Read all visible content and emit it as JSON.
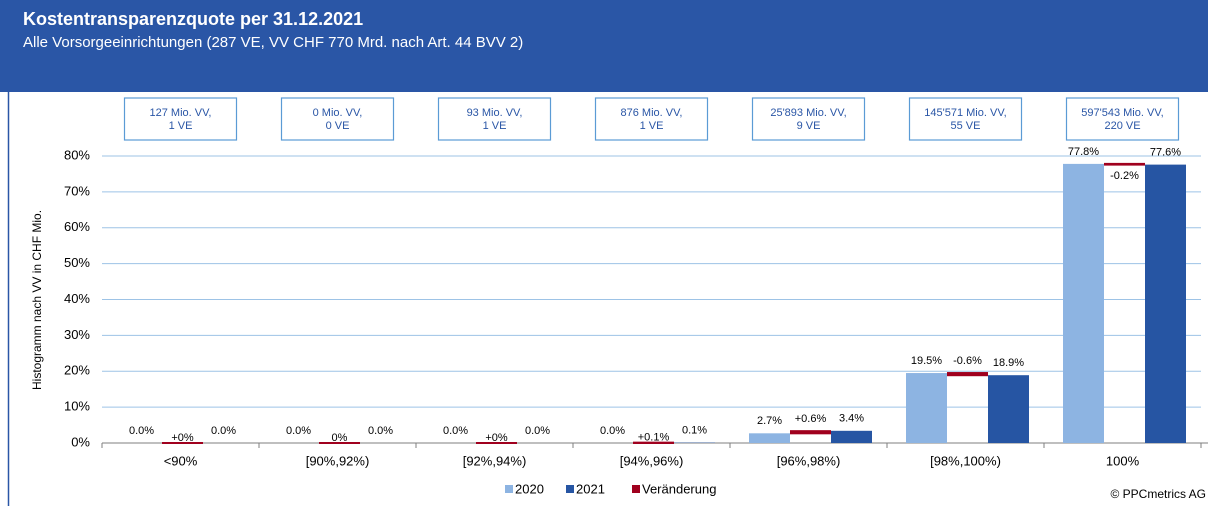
{
  "chart_data": {
    "type": "bar",
    "title": "Kostentransparenzquote per 31.12.2021",
    "subtitle": "Alle Vorsorgeeinrichtungen (287 VE, VV CHF 770 Mrd. nach Art. 44 BVV 2)",
    "y_label": "Histogramm nach VV in CHF Mio.",
    "categories": [
      "<90%",
      "[90%,92%)",
      "[92%,94%)",
      "[94%,96%)",
      "[96%,98%)",
      "[98%,100%)",
      "100%"
    ],
    "annotations": [
      [
        "127 Mio. VV,",
        "1 VE"
      ],
      [
        "0 Mio. VV,",
        "0 VE"
      ],
      [
        "93 Mio. VV,",
        "1 VE"
      ],
      [
        "876 Mio. VV,",
        "1 VE"
      ],
      [
        "25'893 Mio. VV,",
        "9 VE"
      ],
      [
        "145'571 Mio. VV,",
        "55 VE"
      ],
      [
        "597'543 Mio. VV,",
        "220 VE"
      ]
    ],
    "series": [
      {
        "name": "2020",
        "color": "#8db4e2",
        "values": [
          0,
          0,
          0,
          0,
          2.7,
          19.5,
          77.8
        ],
        "value_labels": [
          "0.0%",
          "0.0%",
          "0.0%",
          "0.0%",
          "2.7%",
          "19.5%",
          "77.8%"
        ]
      },
      {
        "name": "2021",
        "color": "#2655a3",
        "values": [
          0,
          0,
          0,
          0.1,
          3.4,
          18.9,
          77.6
        ],
        "value_labels": [
          "0.0%",
          "0.0%",
          "0.0%",
          "0.1%",
          "3.4%",
          "18.9%",
          "77.6%"
        ]
      },
      {
        "name": "Veränderung",
        "color": "#a0001e",
        "values": [
          0,
          0,
          0,
          0.1,
          0.6,
          -0.6,
          -0.2
        ],
        "value_labels": [
          "+0%",
          "0%",
          "+0%",
          "+0.1%",
          "+0.6%",
          "-0.6%",
          "-0.2%"
        ]
      }
    ],
    "ylim": [
      0,
      80
    ],
    "yticks": [
      {
        "value": 0,
        "label": "0%"
      },
      {
        "value": 10,
        "label": "10%"
      },
      {
        "value": 20,
        "label": "20%"
      },
      {
        "value": 30,
        "label": "30%"
      },
      {
        "value": 40,
        "label": "40%"
      },
      {
        "value": 50,
        "label": "50%"
      },
      {
        "value": 60,
        "label": "60%"
      },
      {
        "value": 70,
        "label": "70%"
      },
      {
        "value": 80,
        "label": "80%"
      }
    ],
    "grid": true,
    "legend": "bottom",
    "copyright": "© PPCmetrics AG"
  }
}
